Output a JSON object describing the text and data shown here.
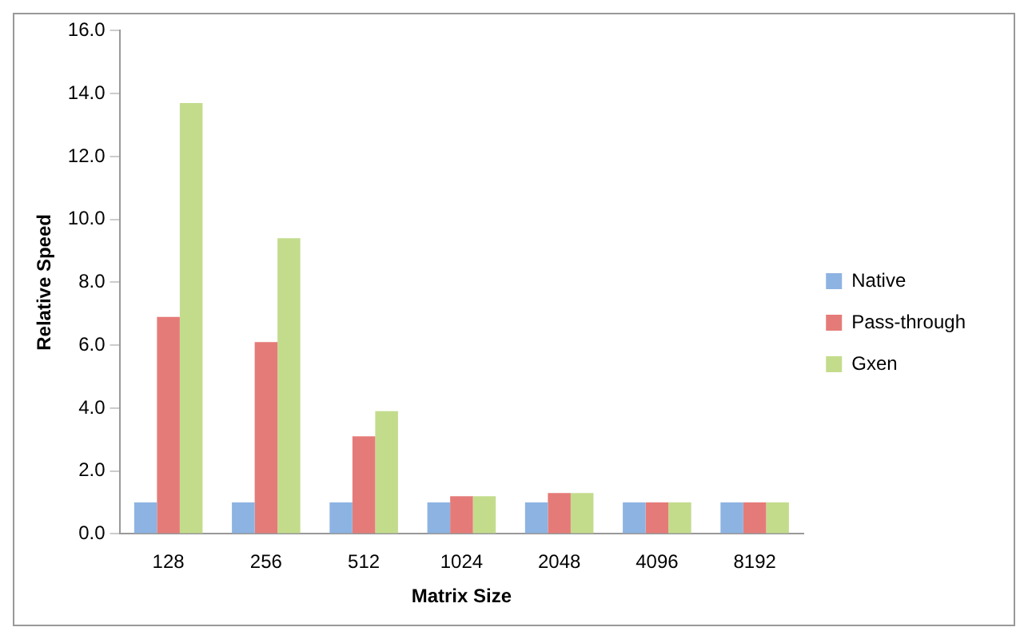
{
  "chart_data": {
    "type": "bar",
    "xlabel": "Matrix Size",
    "ylabel": "Relative Speed",
    "categories": [
      "128",
      "256",
      "512",
      "1024",
      "2048",
      "4096",
      "8192"
    ],
    "series": [
      {
        "name": "Native",
        "color": "#8db3e2",
        "values": [
          1.0,
          1.0,
          1.0,
          1.0,
          1.0,
          1.0,
          1.0
        ]
      },
      {
        "name": "Pass-through",
        "color": "#e57b78",
        "values": [
          6.9,
          6.1,
          3.1,
          1.2,
          1.3,
          1.0,
          1.0
        ]
      },
      {
        "name": "Gxen",
        "color": "#c3dc8c",
        "values": [
          13.7,
          9.4,
          3.9,
          1.2,
          1.3,
          1.0,
          1.0
        ]
      }
    ],
    "ylim": [
      0,
      16
    ],
    "yticks": [
      {
        "value": 0,
        "label": "0.0"
      },
      {
        "value": 2,
        "label": "2.0"
      },
      {
        "value": 4,
        "label": "4.0"
      },
      {
        "value": 6,
        "label": "6.0"
      },
      {
        "value": 8,
        "label": "8.0"
      },
      {
        "value": 10,
        "label": "10.0"
      },
      {
        "value": 12,
        "label": "12.0"
      },
      {
        "value": 14,
        "label": "14.0"
      },
      {
        "value": 16,
        "label": "16.0"
      }
    ],
    "grid": false,
    "legend": "right"
  }
}
